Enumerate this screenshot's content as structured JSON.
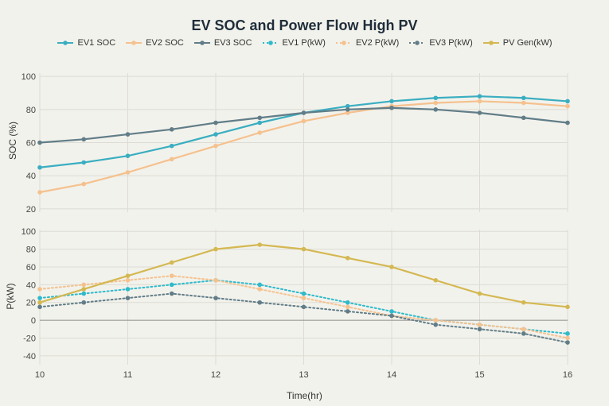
{
  "chart_data": {
    "type": "line",
    "title": "EV SOC and Power Flow High PV",
    "xlabel": "Time(hr)",
    "x": [
      10,
      10.5,
      11,
      11.5,
      12,
      12.5,
      13,
      13.5,
      14,
      14.5,
      15,
      15.5,
      16
    ],
    "x_ticks": [
      10,
      11,
      12,
      13,
      14,
      15,
      16
    ],
    "subplots": [
      {
        "ylabel": "SOC (%)",
        "ylim": [
          18,
          102
        ],
        "y_ticks": [
          20,
          40,
          60,
          80,
          100
        ],
        "series": [
          {
            "name": "EV1 SOC",
            "color": "#3aaec1",
            "dash": "solid",
            "values": [
              45,
              48,
              52,
              58,
              65,
              72,
              78,
              82,
              85,
              87,
              88,
              87,
              85
            ]
          },
          {
            "name": "EV2 SOC",
            "color": "#f5c18e",
            "dash": "solid",
            "values": [
              30,
              35,
              42,
              50,
              58,
              66,
              73,
              78,
              82,
              84,
              85,
              84,
              82
            ]
          },
          {
            "name": "EV3 SOC",
            "color": "#617d88",
            "dash": "solid",
            "values": [
              60,
              62,
              65,
              68,
              72,
              75,
              78,
              80,
              81,
              80,
              78,
              75,
              72
            ]
          }
        ]
      },
      {
        "ylabel": "P(kW)",
        "ylim": [
          -50,
          102
        ],
        "y_ticks": [
          -40,
          -20,
          0,
          20,
          40,
          60,
          80,
          100
        ],
        "series": [
          {
            "name": "EV1 P(kW)",
            "color": "#2fbacb",
            "dash": "dot",
            "values": [
              25,
              30,
              35,
              40,
              45,
              40,
              30,
              20,
              10,
              0,
              -5,
              -10,
              -15
            ]
          },
          {
            "name": "EV2 P(kW)",
            "color": "#f5c18e",
            "dash": "dot",
            "values": [
              35,
              40,
              45,
              50,
              45,
              35,
              25,
              15,
              5,
              0,
              -5,
              -10,
              -20
            ]
          },
          {
            "name": "EV3 P(kW)",
            "color": "#617d88",
            "dash": "dot",
            "values": [
              15,
              20,
              25,
              30,
              25,
              20,
              15,
              10,
              5,
              -5,
              -10,
              -15,
              -25
            ]
          },
          {
            "name": "PV Gen(kW)",
            "color": "#d4b852",
            "dash": "solid",
            "values": [
              20,
              35,
              50,
              65,
              80,
              85,
              80,
              70,
              60,
              45,
              30,
              20,
              15
            ]
          }
        ]
      }
    ]
  }
}
